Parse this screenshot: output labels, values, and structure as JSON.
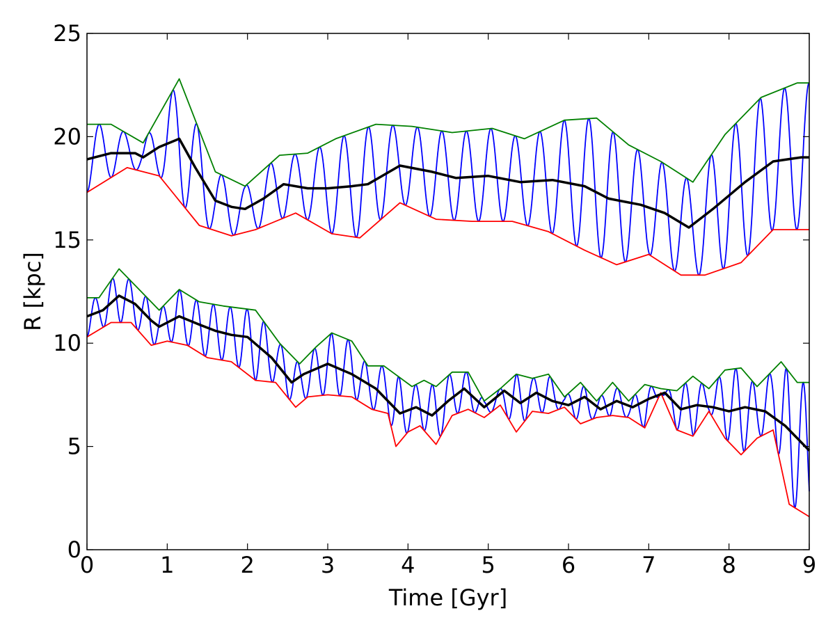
{
  "chart_data": {
    "type": "line",
    "title": "",
    "xlabel": "Time [Gyr]",
    "ylabel": "R [kpc]",
    "xlim": [
      0,
      9
    ],
    "ylim": [
      0,
      25
    ],
    "xticks": [
      0,
      1,
      2,
      3,
      4,
      5,
      6,
      7,
      8,
      9
    ],
    "yticks": [
      0,
      5,
      10,
      15,
      20,
      25
    ],
    "grid": false,
    "legend": "none",
    "series": [
      {
        "key": "outer_apocenter",
        "color": "#008000",
        "x": [
          0,
          0.3,
          0.7,
          1.15,
          1.6,
          1.97,
          2.4,
          2.75,
          3.1,
          3.6,
          4.05,
          4.55,
          5.05,
          5.45,
          5.95,
          6.35,
          6.75,
          7.15,
          7.55,
          7.95,
          8.4,
          8.85,
          9.0
        ],
        "y": [
          20.6,
          20.6,
          19.7,
          22.8,
          18.3,
          17.6,
          19.1,
          19.2,
          19.9,
          20.6,
          20.5,
          20.2,
          20.4,
          19.9,
          20.8,
          20.9,
          19.6,
          18.8,
          17.8,
          20.1,
          21.9,
          22.6,
          22.6
        ]
      },
      {
        "key": "outer_pericenter",
        "color": "#ff0000",
        "x": [
          0,
          0.5,
          0.9,
          1.4,
          1.8,
          2.1,
          2.6,
          3.05,
          3.4,
          3.9,
          4.35,
          4.8,
          5.3,
          5.75,
          6.2,
          6.6,
          7.0,
          7.4,
          7.7,
          8.15,
          8.55,
          9.0
        ],
        "y": [
          17.3,
          18.5,
          18.1,
          15.7,
          15.2,
          15.5,
          16.3,
          15.3,
          15.1,
          16.8,
          16.0,
          15.9,
          15.9,
          15.4,
          14.5,
          13.8,
          14.3,
          13.3,
          13.3,
          13.9,
          15.5,
          15.5
        ]
      },
      {
        "key": "outer_mean",
        "color": "#000000",
        "x": [
          0,
          0.3,
          0.6,
          0.7,
          0.9,
          1.15,
          1.35,
          1.6,
          1.8,
          1.97,
          2.2,
          2.45,
          2.75,
          3.0,
          3.3,
          3.5,
          3.9,
          4.3,
          4.6,
          5.0,
          5.4,
          5.8,
          6.2,
          6.5,
          6.9,
          7.2,
          7.5,
          7.8,
          8.2,
          8.55,
          8.9,
          9.0
        ],
        "y": [
          18.9,
          19.2,
          19.2,
          19.0,
          19.5,
          19.9,
          18.5,
          16.9,
          16.6,
          16.5,
          17.0,
          17.7,
          17.5,
          17.5,
          17.6,
          17.7,
          18.6,
          18.3,
          18.0,
          18.1,
          17.8,
          17.9,
          17.6,
          17.0,
          16.7,
          16.3,
          15.6,
          16.5,
          17.8,
          18.8,
          19.0,
          19.0
        ]
      },
      {
        "key": "inner_apocenter",
        "color": "#008000",
        "x": [
          0,
          0.15,
          0.4,
          0.6,
          0.9,
          1.15,
          1.4,
          1.7,
          2.1,
          2.4,
          2.65,
          2.85,
          3.05,
          3.3,
          3.5,
          3.7,
          4.05,
          4.2,
          4.35,
          4.55,
          4.75,
          4.95,
          5.15,
          5.35,
          5.55,
          5.75,
          5.95,
          6.15,
          6.35,
          6.55,
          6.75,
          6.95,
          7.15,
          7.35,
          7.55,
          7.75,
          7.95,
          8.15,
          8.35,
          8.65,
          8.85,
          9.0
        ],
        "y": [
          12.2,
          12.2,
          13.6,
          12.8,
          11.6,
          12.6,
          12.0,
          11.8,
          11.6,
          10.0,
          9.0,
          9.8,
          10.5,
          10.1,
          8.9,
          8.9,
          7.9,
          8.2,
          7.9,
          8.6,
          8.6,
          7.2,
          7.8,
          8.5,
          8.3,
          8.5,
          7.4,
          8.1,
          7.2,
          8.1,
          7.2,
          8.0,
          7.8,
          7.7,
          8.4,
          7.8,
          8.7,
          8.8,
          7.9,
          9.1,
          8.1,
          8.1
        ]
      },
      {
        "key": "inner_pericenter",
        "color": "#ff0000",
        "x": [
          0,
          0.3,
          0.55,
          0.8,
          1.0,
          1.25,
          1.5,
          1.8,
          2.1,
          2.35,
          2.6,
          2.75,
          3.0,
          3.3,
          3.55,
          3.75,
          3.85,
          4.0,
          4.15,
          4.35,
          4.55,
          4.75,
          4.95,
          5.15,
          5.35,
          5.55,
          5.75,
          5.95,
          6.15,
          6.35,
          6.55,
          6.75,
          6.95,
          7.15,
          7.35,
          7.55,
          7.75,
          7.95,
          8.15,
          8.35,
          8.55,
          8.75,
          9.0
        ],
        "y": [
          10.3,
          11.0,
          11.0,
          9.9,
          10.1,
          9.9,
          9.3,
          9.1,
          8.2,
          8.1,
          6.9,
          7.4,
          7.5,
          7.4,
          6.8,
          6.6,
          5.0,
          5.7,
          6.0,
          5.1,
          6.5,
          6.8,
          6.4,
          7.0,
          5.7,
          6.7,
          6.6,
          6.9,
          6.1,
          6.4,
          6.5,
          6.4,
          5.9,
          7.6,
          5.8,
          5.5,
          6.7,
          5.4,
          4.6,
          5.4,
          5.8,
          2.2,
          1.6
        ]
      },
      {
        "key": "inner_mean",
        "color": "#000000",
        "x": [
          0,
          0.2,
          0.4,
          0.6,
          0.8,
          0.9,
          1.15,
          1.4,
          1.6,
          1.8,
          2.0,
          2.3,
          2.55,
          2.7,
          3.0,
          3.3,
          3.6,
          3.9,
          4.1,
          4.3,
          4.5,
          4.7,
          4.95,
          5.2,
          5.4,
          5.6,
          5.8,
          6.0,
          6.2,
          6.4,
          6.6,
          6.8,
          7.0,
          7.2,
          7.4,
          7.6,
          7.8,
          8.0,
          8.2,
          8.45,
          8.7,
          9.0
        ],
        "y": [
          11.3,
          11.6,
          12.3,
          11.9,
          11.1,
          10.8,
          11.3,
          10.9,
          10.6,
          10.4,
          10.3,
          9.3,
          8.1,
          8.5,
          9.0,
          8.5,
          7.8,
          6.6,
          6.9,
          6.5,
          7.2,
          7.8,
          6.9,
          7.7,
          7.1,
          7.6,
          7.2,
          7.0,
          7.4,
          6.8,
          7.2,
          6.9,
          7.3,
          7.6,
          6.8,
          7.0,
          6.9,
          6.7,
          6.9,
          6.7,
          6.0,
          4.8
        ]
      },
      {
        "key": "outer_orbit",
        "color": "#0000ff",
        "oscillation": {
          "between": [
            "outer_pericenter",
            "outer_apocenter"
          ],
          "period_gyr": 0.305,
          "start": "pericenter",
          "x_range": [
            0,
            9
          ]
        }
      },
      {
        "key": "inner_orbit",
        "color": "#0000ff",
        "oscillation": {
          "between": [
            "inner_pericenter",
            "inner_apocenter"
          ],
          "period_gyr": 0.21,
          "start": "pericenter",
          "x_range": [
            0,
            9
          ]
        }
      }
    ]
  }
}
